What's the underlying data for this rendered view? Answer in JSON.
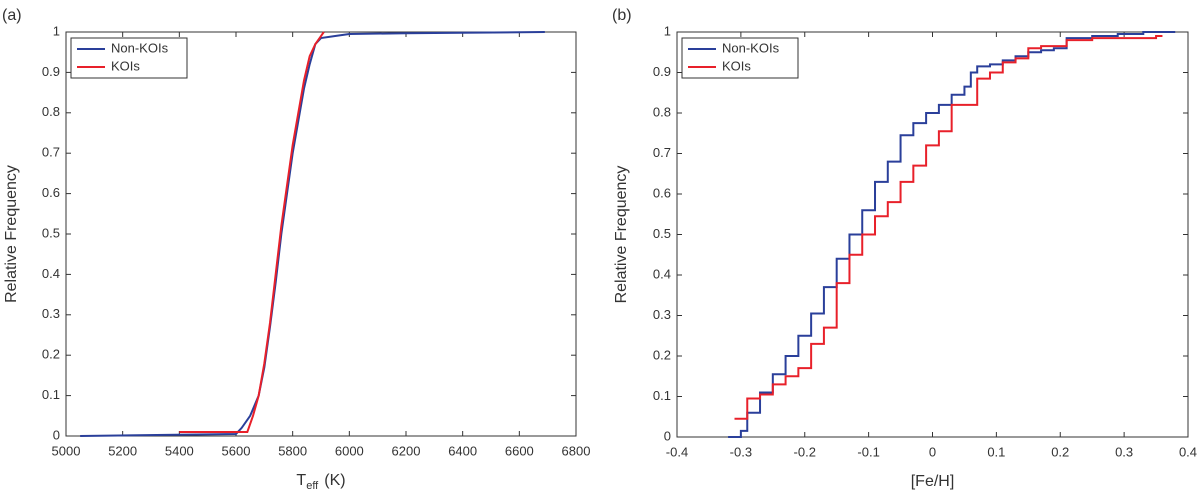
{
  "chart_data": [
    {
      "type": "line",
      "step": false,
      "panel_label": "(a)",
      "xlabel": "T",
      "xlabel_subscript": "eff",
      "xlabel_unit": "(K)",
      "ylabel": "Relative Frequency",
      "xlim": [
        5000,
        6800
      ],
      "xticks": [
        5000,
        5200,
        5400,
        5600,
        5800,
        6000,
        6200,
        6400,
        6600,
        6800
      ],
      "ylim": [
        0,
        1
      ],
      "yticks": [
        0,
        0.1,
        0.2,
        0.3,
        0.4,
        0.5,
        0.6,
        0.7,
        0.8,
        0.9,
        1
      ],
      "grid": false,
      "legend": "upper left",
      "series": [
        {
          "name": "Non-KOIs",
          "color": "#2a3f9a",
          "x": [
            5050,
            5600,
            5620,
            5650,
            5680,
            5700,
            5720,
            5740,
            5760,
            5780,
            5800,
            5820,
            5840,
            5860,
            5880,
            5900,
            5950,
            6000,
            6200,
            6400,
            6690
          ],
          "values": [
            0,
            0.005,
            0.02,
            0.05,
            0.1,
            0.17,
            0.27,
            0.38,
            0.5,
            0.6,
            0.7,
            0.78,
            0.86,
            0.92,
            0.97,
            0.985,
            0.99,
            0.995,
            0.997,
            0.998,
            1
          ]
        },
        {
          "name": "KOIs",
          "color": "#e8202a",
          "x": [
            5400,
            5640,
            5660,
            5680,
            5700,
            5720,
            5740,
            5760,
            5780,
            5800,
            5820,
            5840,
            5860,
            5880,
            5900,
            5910
          ],
          "values": [
            0.01,
            0.01,
            0.05,
            0.1,
            0.18,
            0.28,
            0.4,
            0.52,
            0.62,
            0.72,
            0.8,
            0.88,
            0.94,
            0.97,
            0.99,
            1
          ]
        }
      ]
    },
    {
      "type": "line",
      "step": true,
      "panel_label": "(b)",
      "xlabel": "[Fe/H]",
      "ylabel": "Relative Frequency",
      "xlim": [
        -0.4,
        0.4
      ],
      "xticks": [
        -0.4,
        -0.3,
        -0.2,
        -0.1,
        0,
        0.1,
        0.2,
        0.3,
        0.4
      ],
      "ylim": [
        0,
        1
      ],
      "yticks": [
        0,
        0.1,
        0.2,
        0.3,
        0.4,
        0.5,
        0.6,
        0.7,
        0.8,
        0.9,
        1
      ],
      "grid": false,
      "legend": "upper left",
      "series": [
        {
          "name": "Non-KOIs",
          "color": "#2a3f9a",
          "x": [
            -0.32,
            -0.3,
            -0.29,
            -0.27,
            -0.25,
            -0.23,
            -0.21,
            -0.19,
            -0.17,
            -0.15,
            -0.13,
            -0.11,
            -0.09,
            -0.07,
            -0.05,
            -0.03,
            -0.01,
            0.01,
            0.03,
            0.05,
            0.06,
            0.07,
            0.09,
            0.11,
            0.13,
            0.15,
            0.17,
            0.19,
            0.21,
            0.25,
            0.29,
            0.33,
            0.38
          ],
          "values": [
            0,
            0.015,
            0.06,
            0.11,
            0.155,
            0.2,
            0.25,
            0.305,
            0.37,
            0.44,
            0.5,
            0.56,
            0.63,
            0.68,
            0.745,
            0.775,
            0.8,
            0.82,
            0.845,
            0.865,
            0.9,
            0.915,
            0.92,
            0.93,
            0.94,
            0.95,
            0.955,
            0.96,
            0.985,
            0.99,
            0.995,
            1,
            1
          ]
        },
        {
          "name": "KOIs",
          "color": "#e8202a",
          "x": [
            -0.31,
            -0.29,
            -0.27,
            -0.25,
            -0.23,
            -0.21,
            -0.19,
            -0.17,
            -0.15,
            -0.13,
            -0.11,
            -0.09,
            -0.07,
            -0.05,
            -0.03,
            -0.01,
            0.01,
            0.03,
            0.05,
            0.07,
            0.09,
            0.11,
            0.13,
            0.15,
            0.17,
            0.21,
            0.25,
            0.35,
            0.36
          ],
          "values": [
            0.045,
            0.095,
            0.105,
            0.13,
            0.15,
            0.17,
            0.23,
            0.27,
            0.38,
            0.45,
            0.5,
            0.545,
            0.58,
            0.63,
            0.67,
            0.72,
            0.755,
            0.82,
            0.82,
            0.885,
            0.9,
            0.925,
            0.935,
            0.96,
            0.965,
            0.98,
            0.985,
            0.99,
            0.99
          ]
        }
      ]
    }
  ]
}
